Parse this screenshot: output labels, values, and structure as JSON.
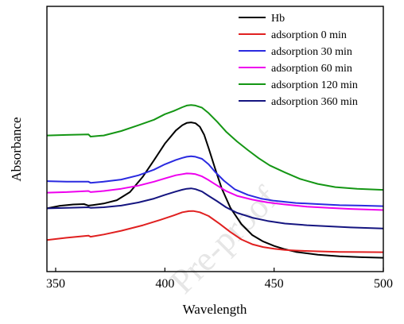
{
  "chart_data": {
    "type": "line",
    "xlabel": "Wavelength",
    "ylabel": "Absorbance",
    "xlim": [
      346,
      500
    ],
    "ylim": [
      0,
      1
    ],
    "x_ticks": [
      350,
      400,
      450,
      500
    ],
    "y_ticks_shown": false,
    "grid": false,
    "legend_position": "top-right",
    "series": [
      {
        "name": "Hb",
        "color": "#000000",
        "points": [
          [
            346,
            0.303
          ],
          [
            352,
            0.317
          ],
          [
            358,
            0.324
          ],
          [
            363,
            0.326
          ],
          [
            365,
            0.318
          ],
          [
            367,
            0.321
          ],
          [
            372,
            0.329
          ],
          [
            378,
            0.347
          ],
          [
            384,
            0.391
          ],
          [
            390,
            0.476
          ],
          [
            395,
            0.563
          ],
          [
            400,
            0.653
          ],
          [
            405,
            0.724
          ],
          [
            408,
            0.753
          ],
          [
            410,
            0.765
          ],
          [
            412,
            0.768
          ],
          [
            414,
            0.763
          ],
          [
            416,
            0.744
          ],
          [
            418,
            0.7
          ],
          [
            420,
            0.629
          ],
          [
            423,
            0.518
          ],
          [
            426,
            0.412
          ],
          [
            430,
            0.306
          ],
          [
            435,
            0.218
          ],
          [
            440,
            0.159
          ],
          [
            445,
            0.124
          ],
          [
            450,
            0.1
          ],
          [
            455,
            0.082
          ],
          [
            460,
            0.068
          ],
          [
            470,
            0.053
          ],
          [
            480,
            0.044
          ],
          [
            490,
            0.039
          ],
          [
            500,
            0.036
          ]
        ]
      },
      {
        "name": "adsorption 0 min",
        "color": "#e02020",
        "points": [
          [
            346,
            0.132
          ],
          [
            355,
            0.144
          ],
          [
            365,
            0.156
          ],
          [
            366,
            0.15
          ],
          [
            372,
            0.162
          ],
          [
            380,
            0.182
          ],
          [
            390,
            0.212
          ],
          [
            398,
            0.241
          ],
          [
            404,
            0.265
          ],
          [
            408,
            0.282
          ],
          [
            411,
            0.288
          ],
          [
            413,
            0.289
          ],
          [
            416,
            0.282
          ],
          [
            420,
            0.262
          ],
          [
            425,
            0.22
          ],
          [
            430,
            0.175
          ],
          [
            435,
            0.135
          ],
          [
            440,
            0.109
          ],
          [
            445,
            0.094
          ],
          [
            450,
            0.085
          ],
          [
            455,
            0.078
          ],
          [
            460,
            0.075
          ],
          [
            470,
            0.071
          ],
          [
            480,
            0.068
          ],
          [
            490,
            0.067
          ],
          [
            500,
            0.066
          ]
        ]
      },
      {
        "name": "adsorption 30 min",
        "color": "#2a2ae0",
        "points": [
          [
            346,
            0.45
          ],
          [
            355,
            0.447
          ],
          [
            365,
            0.447
          ],
          [
            366,
            0.441
          ],
          [
            372,
            0.447
          ],
          [
            380,
            0.459
          ],
          [
            388,
            0.482
          ],
          [
            395,
            0.512
          ],
          [
            400,
            0.541
          ],
          [
            405,
            0.565
          ],
          [
            408,
            0.576
          ],
          [
            410,
            0.582
          ],
          [
            412,
            0.585
          ],
          [
            414,
            0.582
          ],
          [
            417,
            0.571
          ],
          [
            420,
            0.541
          ],
          [
            423,
            0.5
          ],
          [
            427,
            0.453
          ],
          [
            432,
            0.406
          ],
          [
            438,
            0.376
          ],
          [
            444,
            0.356
          ],
          [
            450,
            0.344
          ],
          [
            460,
            0.332
          ],
          [
            470,
            0.326
          ],
          [
            480,
            0.32
          ],
          [
            490,
            0.318
          ],
          [
            500,
            0.315
          ]
        ]
      },
      {
        "name": "adsorption 60 min",
        "color": "#ee00ee",
        "points": [
          [
            346,
            0.388
          ],
          [
            355,
            0.391
          ],
          [
            365,
            0.397
          ],
          [
            366,
            0.391
          ],
          [
            372,
            0.397
          ],
          [
            380,
            0.409
          ],
          [
            388,
            0.426
          ],
          [
            395,
            0.447
          ],
          [
            400,
            0.465
          ],
          [
            405,
            0.482
          ],
          [
            408,
            0.488
          ],
          [
            410,
            0.492
          ],
          [
            412,
            0.491
          ],
          [
            414,
            0.488
          ],
          [
            417,
            0.476
          ],
          [
            420,
            0.456
          ],
          [
            424,
            0.426
          ],
          [
            428,
            0.397
          ],
          [
            433,
            0.371
          ],
          [
            440,
            0.35
          ],
          [
            447,
            0.335
          ],
          [
            455,
            0.324
          ],
          [
            465,
            0.312
          ],
          [
            475,
            0.306
          ],
          [
            485,
            0.3
          ],
          [
            500,
            0.294
          ]
        ]
      },
      {
        "name": "adsorption 120 min",
        "color": "#149614",
        "points": [
          [
            346,
            0.697
          ],
          [
            355,
            0.7
          ],
          [
            365,
            0.703
          ],
          [
            366,
            0.691
          ],
          [
            372,
            0.697
          ],
          [
            380,
            0.721
          ],
          [
            388,
            0.753
          ],
          [
            395,
            0.782
          ],
          [
            400,
            0.812
          ],
          [
            404,
            0.829
          ],
          [
            408,
            0.85
          ],
          [
            410,
            0.859
          ],
          [
            412,
            0.862
          ],
          [
            414,
            0.859
          ],
          [
            417,
            0.847
          ],
          [
            420,
            0.818
          ],
          [
            424,
            0.771
          ],
          [
            428,
            0.718
          ],
          [
            433,
            0.665
          ],
          [
            438,
            0.618
          ],
          [
            443,
            0.574
          ],
          [
            448,
            0.535
          ],
          [
            455,
            0.497
          ],
          [
            462,
            0.462
          ],
          [
            470,
            0.435
          ],
          [
            478,
            0.418
          ],
          [
            488,
            0.409
          ],
          [
            500,
            0.403
          ]
        ]
      },
      {
        "name": "adsorption 360 min",
        "color": "#151580",
        "points": [
          [
            346,
            0.303
          ],
          [
            355,
            0.306
          ],
          [
            365,
            0.309
          ],
          [
            366,
            0.306
          ],
          [
            372,
            0.309
          ],
          [
            380,
            0.318
          ],
          [
            388,
            0.335
          ],
          [
            395,
            0.356
          ],
          [
            400,
            0.376
          ],
          [
            405,
            0.394
          ],
          [
            408,
            0.404
          ],
          [
            410,
            0.409
          ],
          [
            412,
            0.411
          ],
          [
            414,
            0.407
          ],
          [
            417,
            0.394
          ],
          [
            420,
            0.371
          ],
          [
            424,
            0.341
          ],
          [
            428,
            0.309
          ],
          [
            433,
            0.279
          ],
          [
            440,
            0.253
          ],
          [
            447,
            0.235
          ],
          [
            455,
            0.221
          ],
          [
            465,
            0.212
          ],
          [
            475,
            0.206
          ],
          [
            485,
            0.2
          ],
          [
            500,
            0.194
          ]
        ]
      }
    ]
  },
  "watermark_text": "Pre-proof"
}
